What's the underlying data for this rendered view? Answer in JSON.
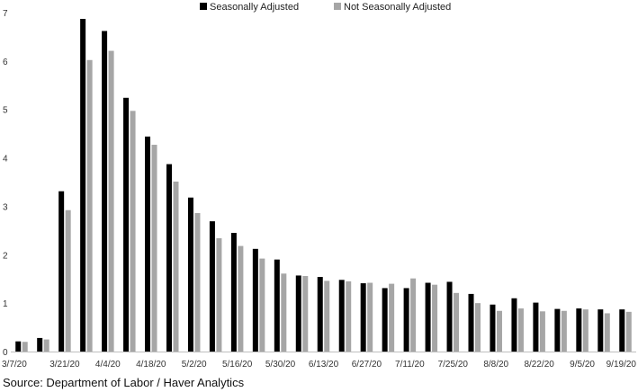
{
  "chart_data": {
    "type": "bar",
    "title": "",
    "xlabel": "",
    "ylabel": "",
    "ylim": [
      0,
      7
    ],
    "yticks": [
      0,
      1,
      2,
      3,
      4,
      5,
      6,
      7
    ],
    "grid": false,
    "legend_position": "top-center",
    "categories": [
      "3/7/20",
      "3/14/20",
      "3/21/20",
      "3/28/20",
      "4/4/20",
      "4/11/20",
      "4/18/20",
      "4/25/20",
      "5/2/20",
      "5/9/20",
      "5/16/20",
      "5/23/20",
      "5/30/20",
      "6/6/20",
      "6/13/20",
      "6/20/20",
      "6/27/20",
      "7/4/20",
      "7/11/20",
      "7/18/20",
      "7/25/20",
      "8/1/20",
      "8/8/20",
      "8/15/20",
      "8/22/20",
      "8/29/20",
      "9/5/20",
      "9/12/20",
      "9/19/20"
    ],
    "visible_tick_labels": [
      "3/7/20",
      "3/21/20",
      "4/4/20",
      "4/18/20",
      "5/2/20",
      "5/16/20",
      "5/30/20",
      "6/13/20",
      "6/27/20",
      "7/11/20",
      "7/25/20",
      "8/8/20",
      "8/22/20",
      "9/5/20",
      "9/19/20"
    ],
    "series": [
      {
        "name": "Seasonally Adjusted",
        "color": "#000000",
        "values": [
          0.21,
          0.28,
          3.31,
          6.87,
          6.62,
          5.24,
          4.44,
          3.87,
          3.18,
          2.69,
          2.45,
          2.12,
          1.9,
          1.57,
          1.54,
          1.48,
          1.41,
          1.31,
          1.31,
          1.42,
          1.44,
          1.19,
          0.97,
          1.1,
          1.01,
          0.88,
          0.89,
          0.87,
          0.87
        ]
      },
      {
        "name": "Not Seasonally Adjusted",
        "color": "#a6a6a6",
        "values": [
          0.2,
          0.25,
          2.92,
          6.02,
          6.21,
          4.97,
          4.27,
          3.51,
          2.86,
          2.34,
          2.18,
          1.92,
          1.61,
          1.56,
          1.46,
          1.45,
          1.42,
          1.4,
          1.51,
          1.38,
          1.21,
          1.0,
          0.84,
          0.89,
          0.83,
          0.84,
          0.87,
          0.79,
          0.82
        ]
      }
    ]
  },
  "source": "Source: Department of Labor / Haver Analytics"
}
